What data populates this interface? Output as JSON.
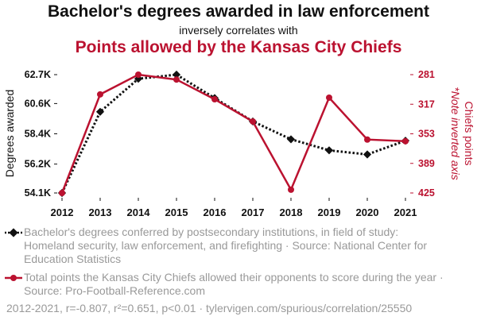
{
  "header": {
    "title": "Bachelor's degrees awarded in law enforcement",
    "subtitle": "inversely correlates with",
    "title2": "Points allowed by the Kansas City Chiefs"
  },
  "legend": {
    "item1": "Bachelor's degrees conferred by postsecondary institutions, in field of study: Homeland security, law enforcement, and firefighting · Source: National Center for Education Statistics",
    "item2": "Total points the Kansas City Chiefs allowed their opponents to score during the year · Source: Pro-Football-Reference.com"
  },
  "footer": "2012-2021, r=-0.807, r²=0.651, p<0.01 · tylervigen.com/spurious/correlation/25550",
  "colors": {
    "series1": "#111111",
    "series2": "#bb1230",
    "legend_text": "#999999"
  },
  "chart_data": {
    "type": "line",
    "x": [
      2012,
      2013,
      2014,
      2015,
      2016,
      2017,
      2018,
      2019,
      2020,
      2021
    ],
    "xtick_labels": [
      "2012",
      "2013",
      "2014",
      "2015",
      "2016",
      "2017",
      "2018",
      "2019",
      "2020",
      "2021"
    ],
    "left_axis": {
      "label": "Degrees awarded",
      "ticks": [
        54100,
        56200,
        58400,
        60600,
        62700
      ],
      "tick_labels": [
        "54.1K",
        "56.2K",
        "58.4K",
        "60.6K",
        "62.7K"
      ],
      "ylim": [
        54100,
        62700
      ]
    },
    "right_axis": {
      "label": "Chiefs points",
      "label2": "*Note inverted axis",
      "ticks": [
        281,
        317,
        353,
        389,
        425
      ],
      "tick_labels": [
        "281",
        "317",
        "353",
        "389",
        "425"
      ],
      "ylim": [
        281,
        425
      ],
      "inverted": true
    },
    "series": [
      {
        "name": "Bachelor's degrees awarded",
        "axis": "left",
        "style": "dotted",
        "marker": "diamond",
        "values": [
          54100,
          60000,
          62400,
          62700,
          61000,
          59300,
          58000,
          57200,
          56900,
          57900
        ]
      },
      {
        "name": "Chiefs points allowed",
        "axis": "right",
        "style": "solid",
        "marker": "circle",
        "values": [
          425,
          305,
          281,
          287,
          311,
          338,
          421,
          309,
          360,
          362
        ]
      }
    ]
  }
}
